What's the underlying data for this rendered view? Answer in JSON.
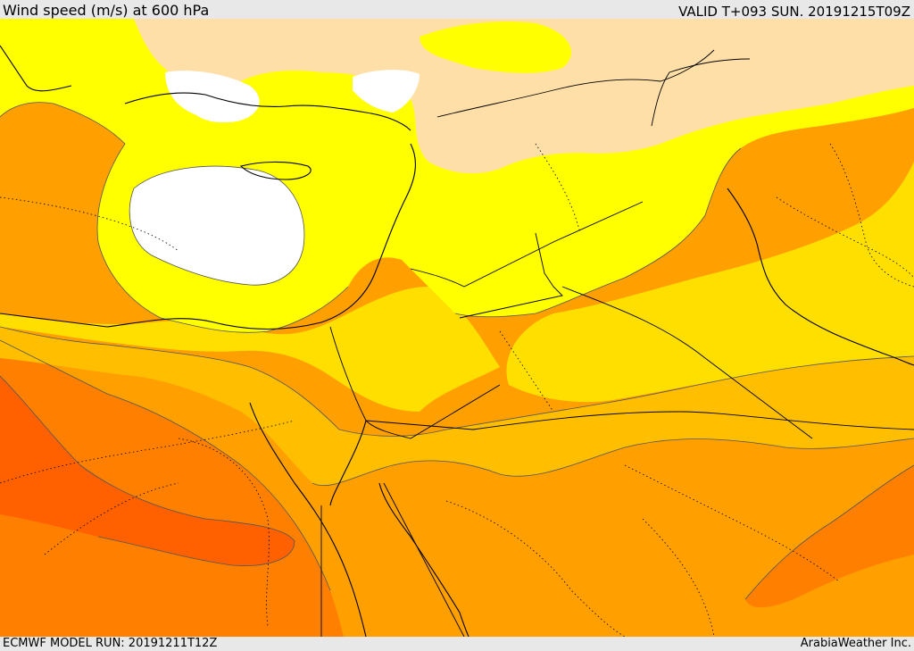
{
  "header": {
    "title": "Wind speed (m/s) at 600 hPa",
    "valid": "VALID T+093 SUN. 20191215T09Z"
  },
  "footer": {
    "model_run": "ECMWF MODEL RUN: 20191211T12Z",
    "brand": "ArabiaWeather Inc."
  },
  "map": {
    "field": "wind-speed-600hPa",
    "colors": {
      "calm": "#ffffff",
      "very_low": "#ffdfa8",
      "low": "#ffff00",
      "moderate": "#ffdf00",
      "medium": "#ffbf00",
      "high": "#ff9f00",
      "very_high": "#ff8000",
      "extreme": "#ff6000",
      "coastline": "#000000",
      "border": "#000000"
    },
    "icons": [
      "coastline-lines",
      "country-border-lines",
      "contour-lines"
    ]
  }
}
